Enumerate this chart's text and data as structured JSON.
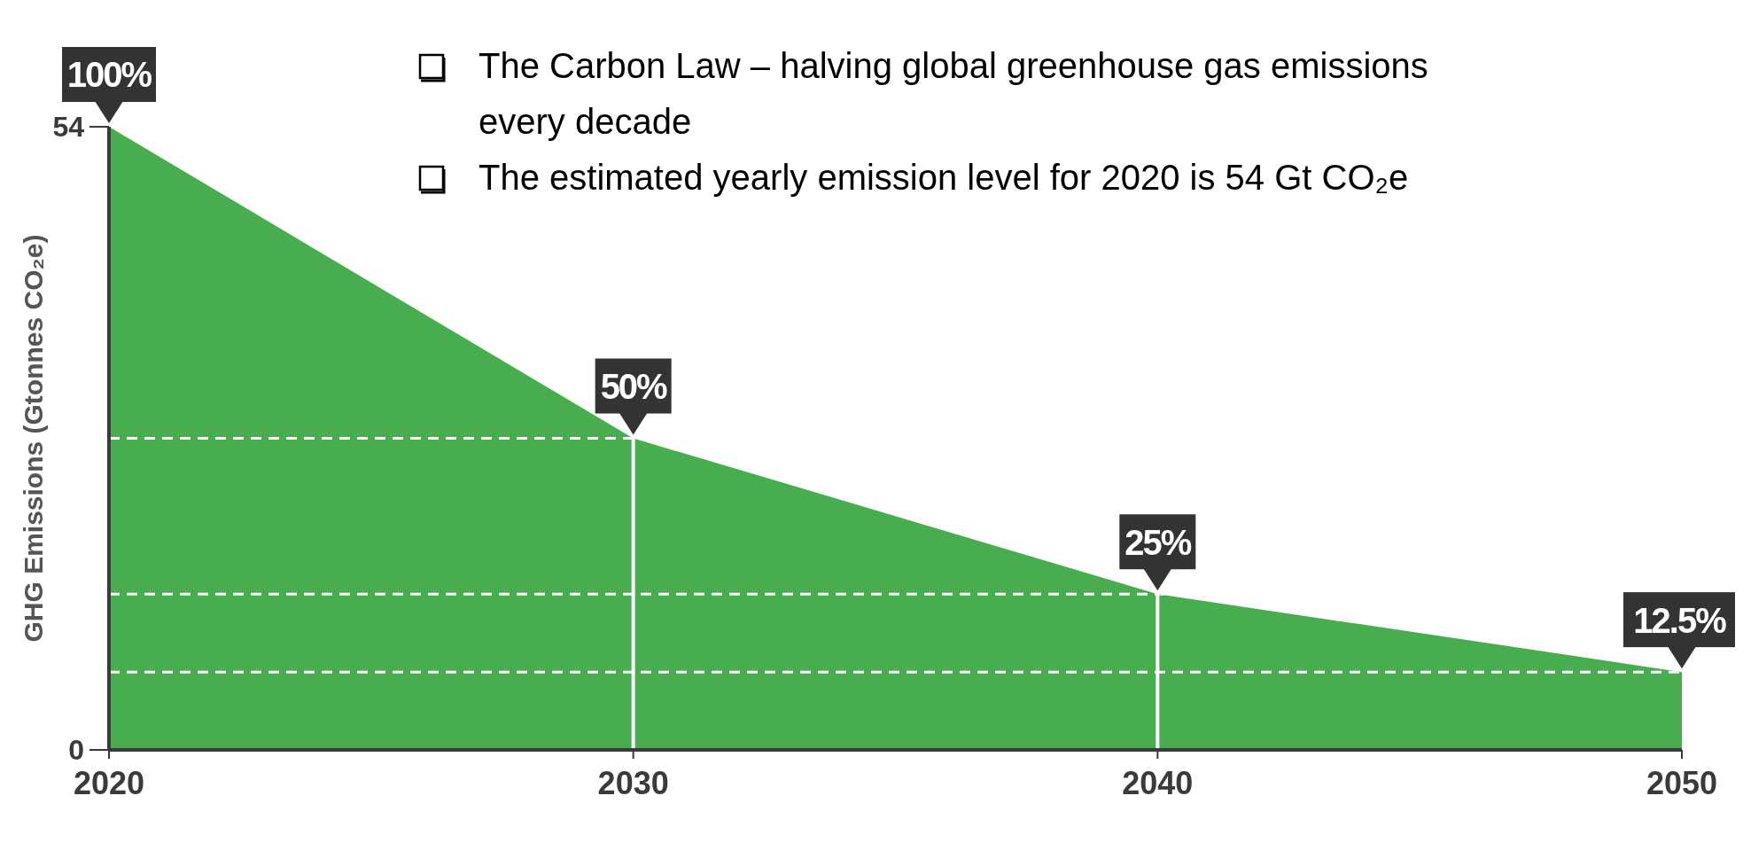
{
  "chart_data": {
    "type": "area",
    "ylabel": "GHG Emissions (Gtonnes CO₂e)",
    "x": [
      2020,
      2030,
      2040,
      2050
    ],
    "series": [
      {
        "color": "#47ad4f",
        "values": [
          54,
          27,
          13.5,
          6.75
        ]
      }
    ],
    "xlim": [
      2020,
      2050
    ],
    "xticks": [
      2020,
      2030,
      2040,
      2050
    ],
    "ylim": [
      0,
      54
    ],
    "yticks": [
      0,
      54
    ],
    "ref_lines": [
      {
        "axis": "y",
        "value": 27,
        "color": "#ffffff",
        "line_style": "dashed"
      },
      {
        "axis": "y",
        "value": 13.5,
        "color": "#ffffff",
        "line_style": "dashed"
      },
      {
        "axis": "y",
        "value": 6.75,
        "color": "#ffffff",
        "line_style": "dashed"
      },
      {
        "axis": "x",
        "value": 2030,
        "color": "#ffffff",
        "line_style": "solid"
      },
      {
        "axis": "x",
        "value": 2040,
        "color": "#ffffff",
        "line_style": "solid"
      }
    ],
    "annotations": [
      {
        "text": "100%",
        "x": 2020,
        "y": 54
      },
      {
        "text": "50%",
        "x": 2030,
        "y": 27
      },
      {
        "text": "25%",
        "x": 2040,
        "y": 13.5
      },
      {
        "text": "12.5%",
        "x": 2050,
        "y": 6.75
      },
      "The Carbon Law – halving global greenhouse gas emissions every decade",
      "The estimated yearly emission level for 2020 is 54 Gt CO₂e"
    ],
    "grid": false
  }
}
